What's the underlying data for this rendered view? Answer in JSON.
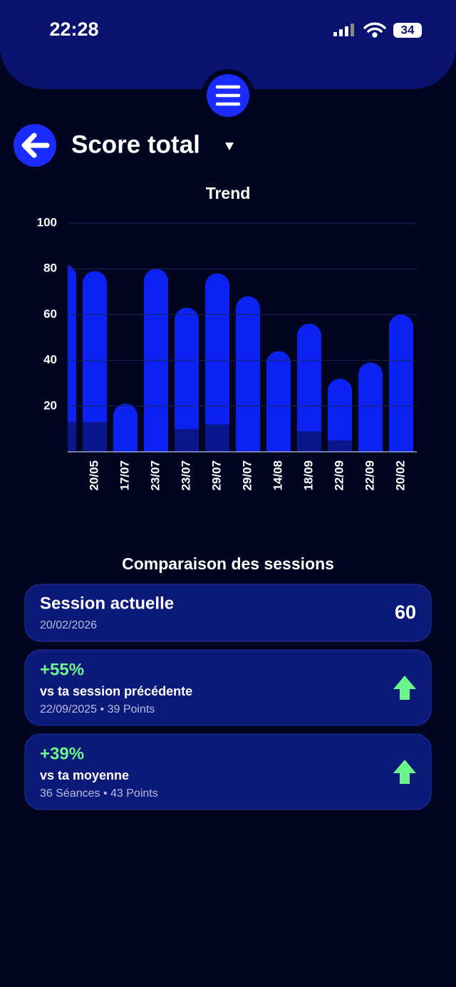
{
  "status_bar": {
    "time": "22:28",
    "battery": "34"
  },
  "header": {
    "title": "Score total"
  },
  "chart_data": {
    "type": "bar",
    "title": "Trend",
    "categories": [
      null,
      "20/05",
      "17/07",
      "23/07",
      "23/07",
      "29/07",
      "29/07",
      "14/08",
      "18/09",
      "22/09",
      "22/09",
      "20/02"
    ],
    "series": [
      {
        "color": "#0c22f2",
        "values": [
          82,
          79,
          21,
          80,
          63,
          78,
          68,
          44,
          56,
          32,
          39,
          60
        ]
      },
      {
        "color": "#0a168c",
        "values": [
          13,
          13,
          0,
          0,
          10,
          12,
          0,
          0,
          9,
          5,
          0,
          0
        ]
      }
    ],
    "ylim": [
      0,
      100
    ],
    "yticks": [
      20,
      40,
      60,
      80,
      100
    ],
    "grid": true
  },
  "comparison": {
    "title": "Comparaison des sessions",
    "current": {
      "title": "Session actuelle",
      "date": "20/02/2026",
      "value": 60
    },
    "cards": [
      {
        "change": "+55%",
        "label": "vs ta session précédente",
        "details": "22/09/2025 • 39 Points"
      },
      {
        "change": "+39%",
        "label": "vs ta moyenne",
        "details": "36 Séances • 43 Points"
      }
    ]
  }
}
